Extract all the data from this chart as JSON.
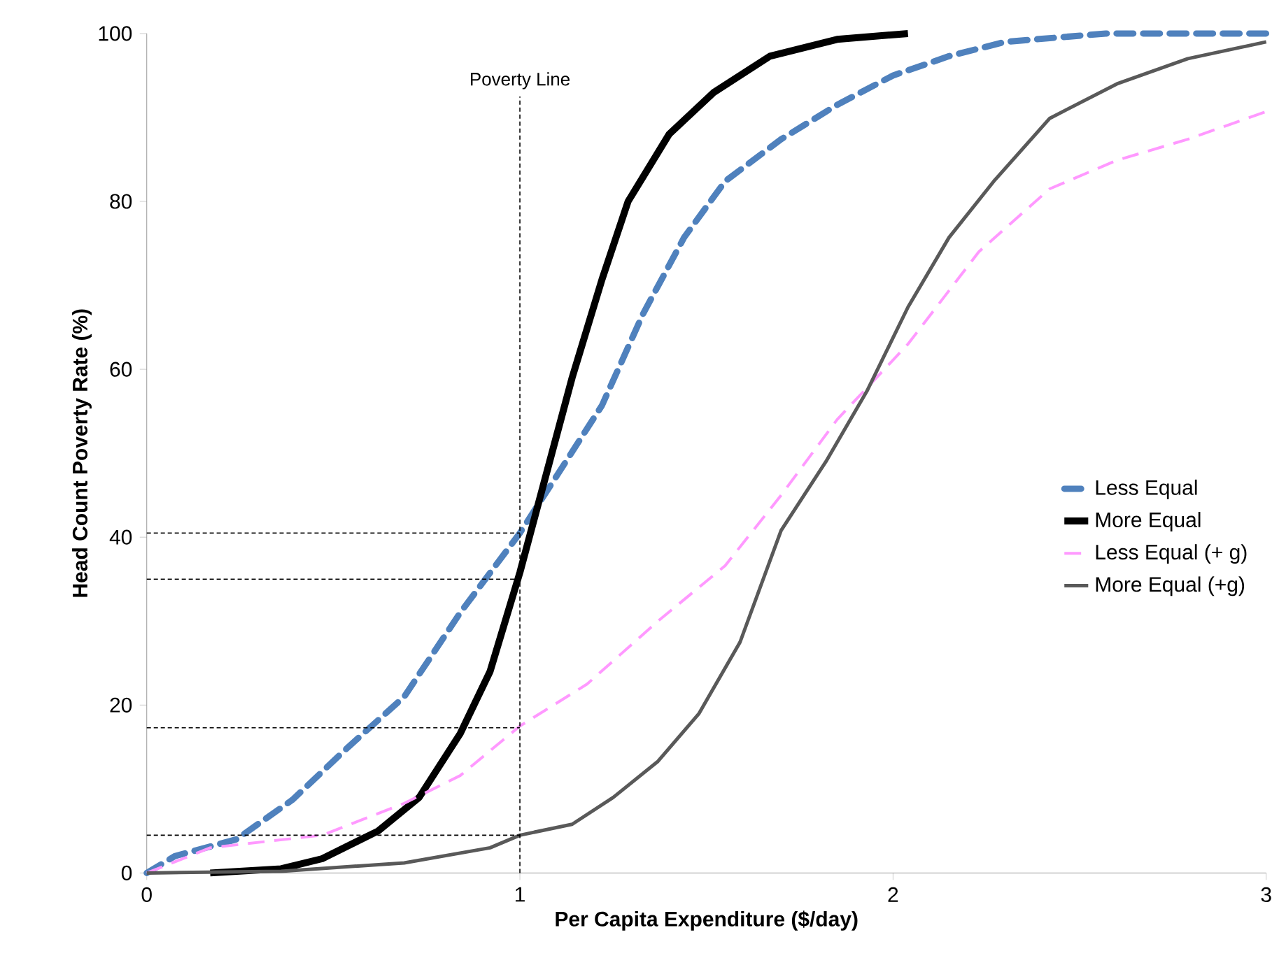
{
  "chart_data": {
    "type": "line",
    "xlabel": "Per Capita Expenditure ($/day)",
    "ylabel": "Head Count Poverty Rate (%)",
    "xlim": [
      0,
      3
    ],
    "ylim": [
      0,
      100
    ],
    "xticks": [
      0,
      1,
      2,
      3
    ],
    "yticks": [
      0,
      20,
      40,
      60,
      80,
      100
    ],
    "grid": false,
    "legend": "right",
    "marker": "none",
    "ref_lines": [
      {
        "axis": "x",
        "value": 1,
        "label": "Poverty Line",
        "color": "#000000",
        "line_style": "dashed"
      }
    ],
    "series": [
      {
        "name": "Less Equal",
        "color": "#4f81bd",
        "line_style": "dashed",
        "x": [
          0,
          0.075,
          0.24,
          0.39,
          0.54,
          0.69,
          0.84,
          1.0,
          1.1,
          1.22,
          1.33,
          1.44,
          1.55,
          1.7,
          1.85,
          2.0,
          2.15,
          2.3,
          2.57,
          3
        ],
        "values": [
          0,
          2,
          4,
          8.7,
          15,
          21,
          31,
          40.5,
          47.4,
          55.7,
          66.6,
          75.7,
          82.4,
          87.4,
          91.5,
          95,
          97.3,
          99,
          100,
          100
        ]
      },
      {
        "name": "More Equal",
        "color": "#000000",
        "line_style": "solid",
        "x": [
          0.17,
          0.36,
          0.47,
          0.62,
          0.73,
          0.84,
          0.92,
          1.0,
          1.07,
          1.14,
          1.22,
          1.29,
          1.4,
          1.52,
          1.67,
          1.85,
          2.04
        ],
        "values": [
          0,
          0.5,
          1.7,
          5,
          9,
          16.6,
          24,
          35.8,
          47.4,
          59,
          70.7,
          80,
          88,
          93,
          97.3,
          99.3,
          100
        ]
      },
      {
        "name": "Less Equal (+ g)",
        "color": "#ff99ff",
        "line_style": "dashed",
        "x": [
          0,
          0.17,
          0.47,
          0.69,
          0.84,
          1.0,
          1.18,
          1.37,
          1.55,
          1.7,
          1.85,
          2.04,
          2.23,
          2.42,
          2.6,
          2.79,
          3
        ],
        "values": [
          0,
          3,
          4.5,
          8.3,
          11.6,
          17.5,
          22.5,
          30,
          36.6,
          45,
          54,
          63,
          74,
          81.5,
          84.9,
          87.4,
          90.7
        ]
      },
      {
        "name": "More Equal (+g)",
        "color": "#595959",
        "line_style": "solid",
        "x": [
          0,
          0.36,
          0.69,
          0.92,
          1.0,
          1.14,
          1.25,
          1.37,
          1.48,
          1.59,
          1.7,
          1.82,
          1.93,
          2.04,
          2.15,
          2.27,
          2.42,
          2.6,
          2.79,
          3
        ],
        "values": [
          0,
          0.2,
          1.2,
          3,
          4.5,
          5.8,
          9,
          13.3,
          19,
          27.5,
          40.8,
          49,
          57.4,
          67.4,
          75.7,
          82.4,
          89.9,
          94,
          97,
          99
        ]
      },
      {
        "color": "#000000",
        "line_style": "dashed",
        "x": [
          0,
          1
        ],
        "values": [
          40.5,
          40.5
        ]
      },
      {
        "color": "#000000",
        "line_style": "dashed",
        "x": [
          0,
          1
        ],
        "values": [
          35,
          35
        ]
      },
      {
        "color": "#000000",
        "line_style": "dashed",
        "x": [
          0,
          1
        ],
        "values": [
          17.3,
          17.3
        ]
      },
      {
        "color": "#000000",
        "line_style": "dashed",
        "x": [
          0,
          1
        ],
        "values": [
          4.5,
          4.5
        ]
      }
    ]
  }
}
